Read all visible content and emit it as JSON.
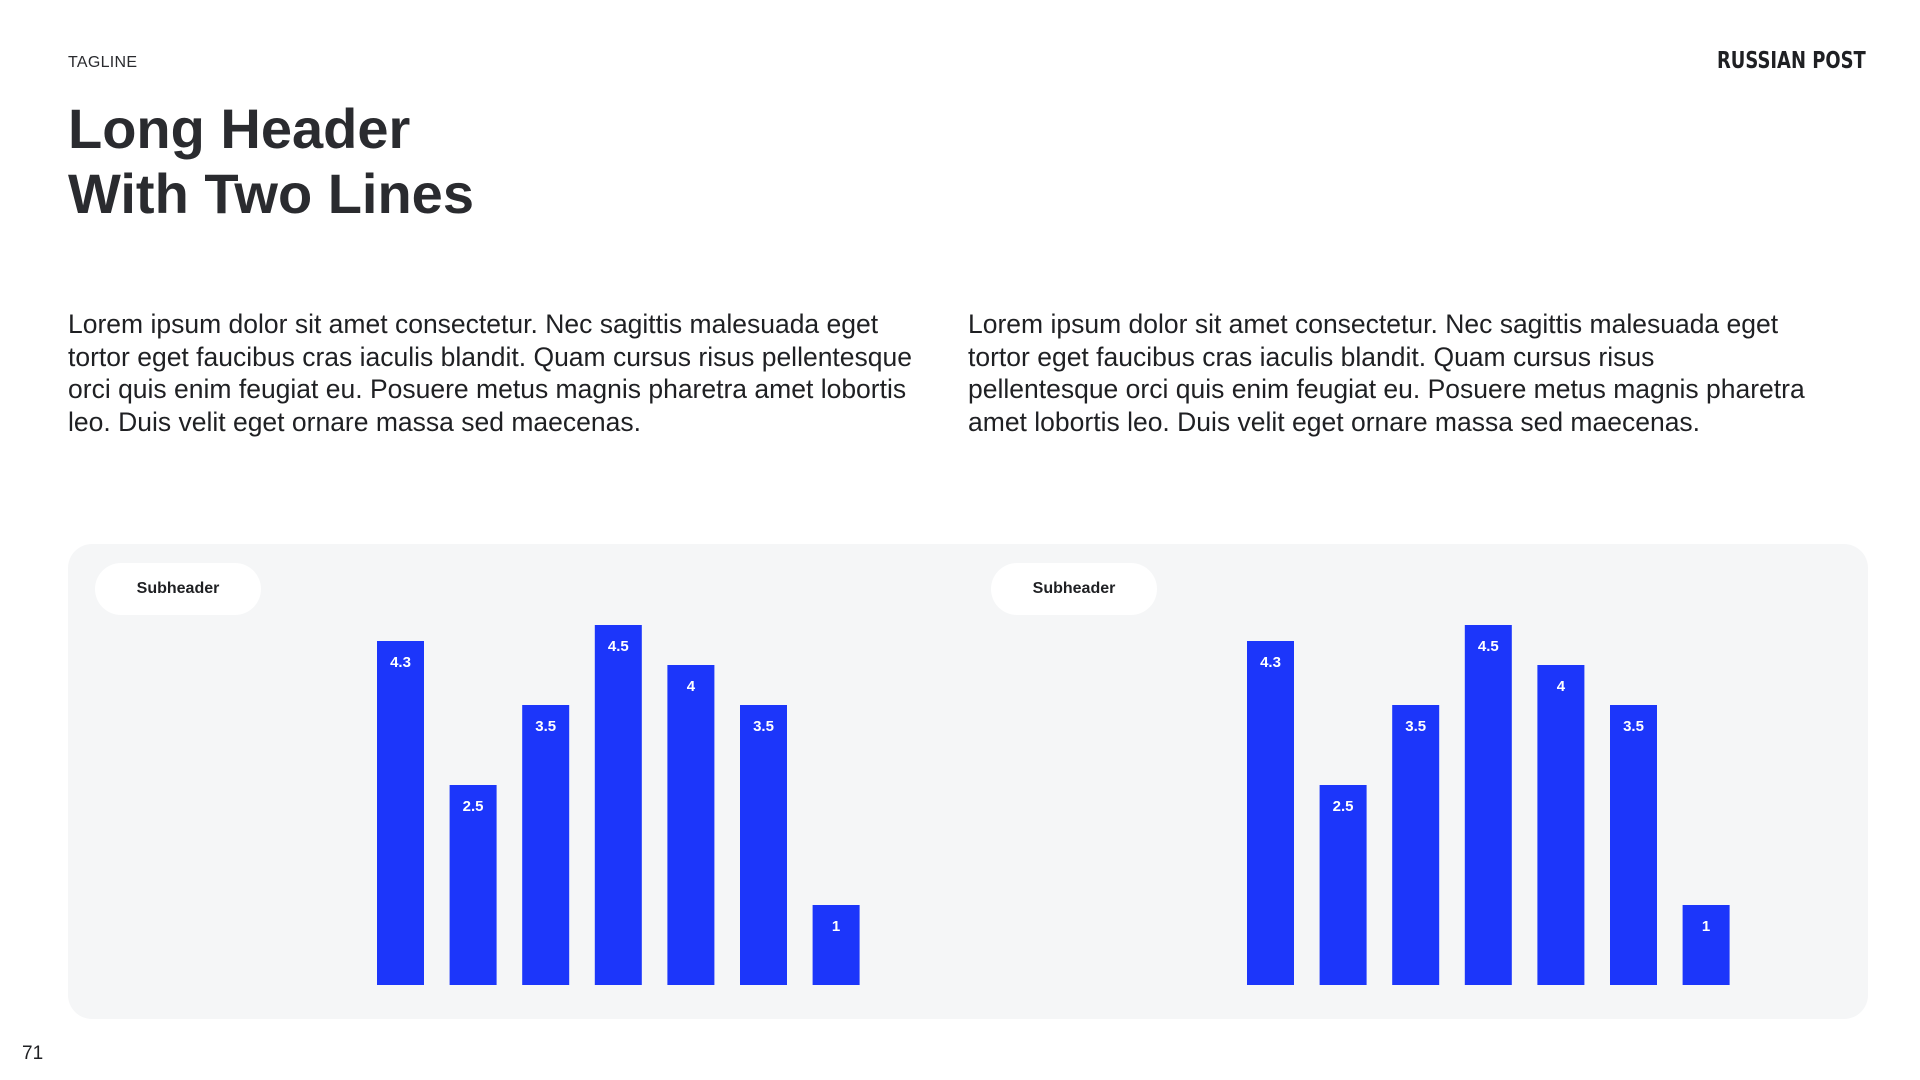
{
  "header": {
    "tagline": "TAGLINE",
    "logo": "RUSSIAN POST",
    "title_line1": "Long Header",
    "title_line2": "With Two Lines"
  },
  "body": {
    "left": "Lorem ipsum dolor sit amet consectetur. Nec sagittis malesuada eget tortor eget faucibus cras iaculis blandit. Quam cursus risus pellentesque orci quis enim feugiat eu. Posuere metus magnis pharetra amet lobortis leo. Duis velit eget ornare massa sed maecenas.",
    "right": "Lorem ipsum dolor sit amet consectetur. Nec sagittis malesuada eget tortor eget faucibus cras iaculis blandit. Quam cursus risus pellentesque orci quis enim feugiat eu. Posuere metus magnis pharetra amet lobortis leo. Duis velit eget ornare massa sed maecenas."
  },
  "colors": {
    "bar": "#1c36fa",
    "panel": "#f5f6f7",
    "text": "#1f2023"
  },
  "chart_data": [
    {
      "type": "bar",
      "subheader": "Subheader",
      "values": [
        4.3,
        2.5,
        3.5,
        4.5,
        4,
        3.5,
        1
      ],
      "labels": [
        "4.3",
        "2.5",
        "3.5",
        "4.5",
        "4",
        "3.5",
        "1"
      ],
      "ylim": [
        0,
        5
      ],
      "grid": false,
      "legend": "none"
    },
    {
      "type": "bar",
      "subheader": "Subheader",
      "values": [
        4.3,
        2.5,
        3.5,
        4.5,
        4,
        3.5,
        1
      ],
      "labels": [
        "4.3",
        "2.5",
        "3.5",
        "4.5",
        "4",
        "3.5",
        "1"
      ],
      "ylim": [
        0,
        5
      ],
      "grid": false,
      "legend": "none"
    }
  ],
  "footer": {
    "page_number": "71"
  }
}
